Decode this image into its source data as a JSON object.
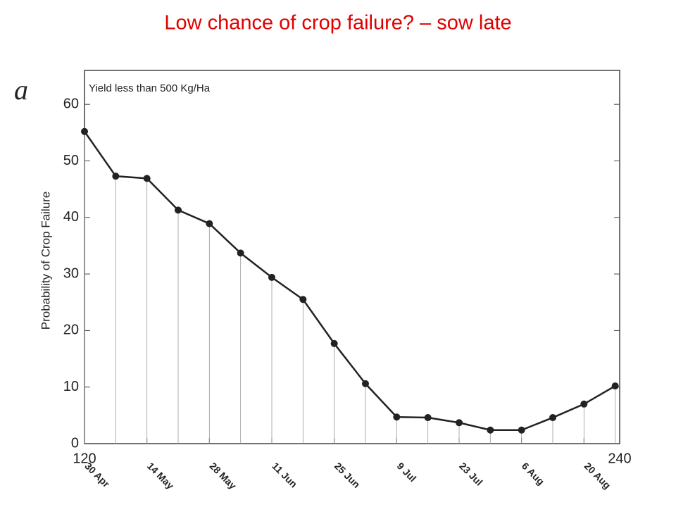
{
  "chart_data": {
    "type": "line",
    "title": "Low chance of crop failure? – sow late",
    "panel_label": "a",
    "annotation": "Yield less than 500 Kg/Ha",
    "y_label": "Probability of Crop Failure",
    "x": [
      120,
      127,
      134,
      141,
      148,
      155,
      162,
      169,
      176,
      183,
      190,
      197,
      204,
      211,
      218,
      225,
      232,
      239
    ],
    "series": [
      {
        "color": "#222222",
        "values": [
          55.2,
          47.3,
          46.9,
          41.3,
          38.9,
          33.7,
          29.4,
          25.5,
          17.7,
          10.6,
          4.7,
          4.6,
          3.7,
          2.4,
          2.4,
          4.6,
          7.0,
          10.2
        ]
      }
    ],
    "xlim": [
      120,
      240
    ],
    "ylim": [
      0,
      66
    ],
    "yticks": [
      0,
      10,
      20,
      30,
      40,
      50,
      60
    ],
    "xticks": [
      {
        "value": 120,
        "label": "30 Apr"
      },
      {
        "value": 134,
        "label": "14 May"
      },
      {
        "value": 148,
        "label": "28 May"
      },
      {
        "value": 162,
        "label": "11 Jun"
      },
      {
        "value": 176,
        "label": "25 Jun"
      },
      {
        "value": 190,
        "label": "9 Jul"
      },
      {
        "value": 204,
        "label": "23 Jul"
      },
      {
        "value": 218,
        "label": "6 Aug"
      },
      {
        "value": 232,
        "label": "20 Aug"
      }
    ],
    "drop_lines": true
  }
}
